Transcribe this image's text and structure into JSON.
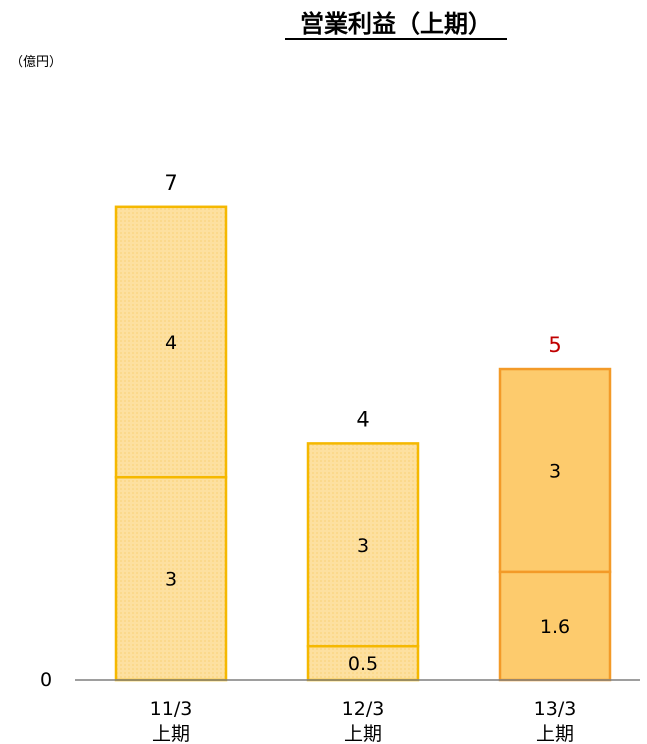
{
  "chart_data": {
    "type": "bar",
    "stacked": true,
    "title": "営業利益（上期）",
    "unit_label": "（億円）",
    "y_zero_label": "0",
    "ylim": [
      0,
      7.8
    ],
    "categories": [
      {
        "line1": "11/3",
        "line2": "上期"
      },
      {
        "line1": "12/3",
        "line2": "上期"
      },
      {
        "line1": "13/3",
        "line2": "上期"
      }
    ],
    "series": [
      {
        "values": [
          3,
          0.5,
          1.6
        ],
        "labels": [
          "3",
          "0.5",
          "1.6"
        ]
      },
      {
        "values": [
          4,
          3,
          3
        ],
        "labels": [
          "4",
          "3",
          "3"
        ]
      }
    ],
    "totals": [
      {
        "value": 7,
        "label": "7",
        "color": "#000000"
      },
      {
        "value": 4,
        "label": "4",
        "color": "#000000"
      },
      {
        "value": 5,
        "label": "5",
        "color": "#c00000"
      }
    ],
    "bar_styles": [
      {
        "fill": "#fde3a6",
        "stroke": "#f5b800"
      },
      {
        "fill": "#fde3a6",
        "stroke": "#f5b800"
      },
      {
        "fill": "#fdcb6d",
        "stroke": "#f39a28"
      }
    ],
    "axis_color": "#7f7f7f",
    "grid": false
  }
}
